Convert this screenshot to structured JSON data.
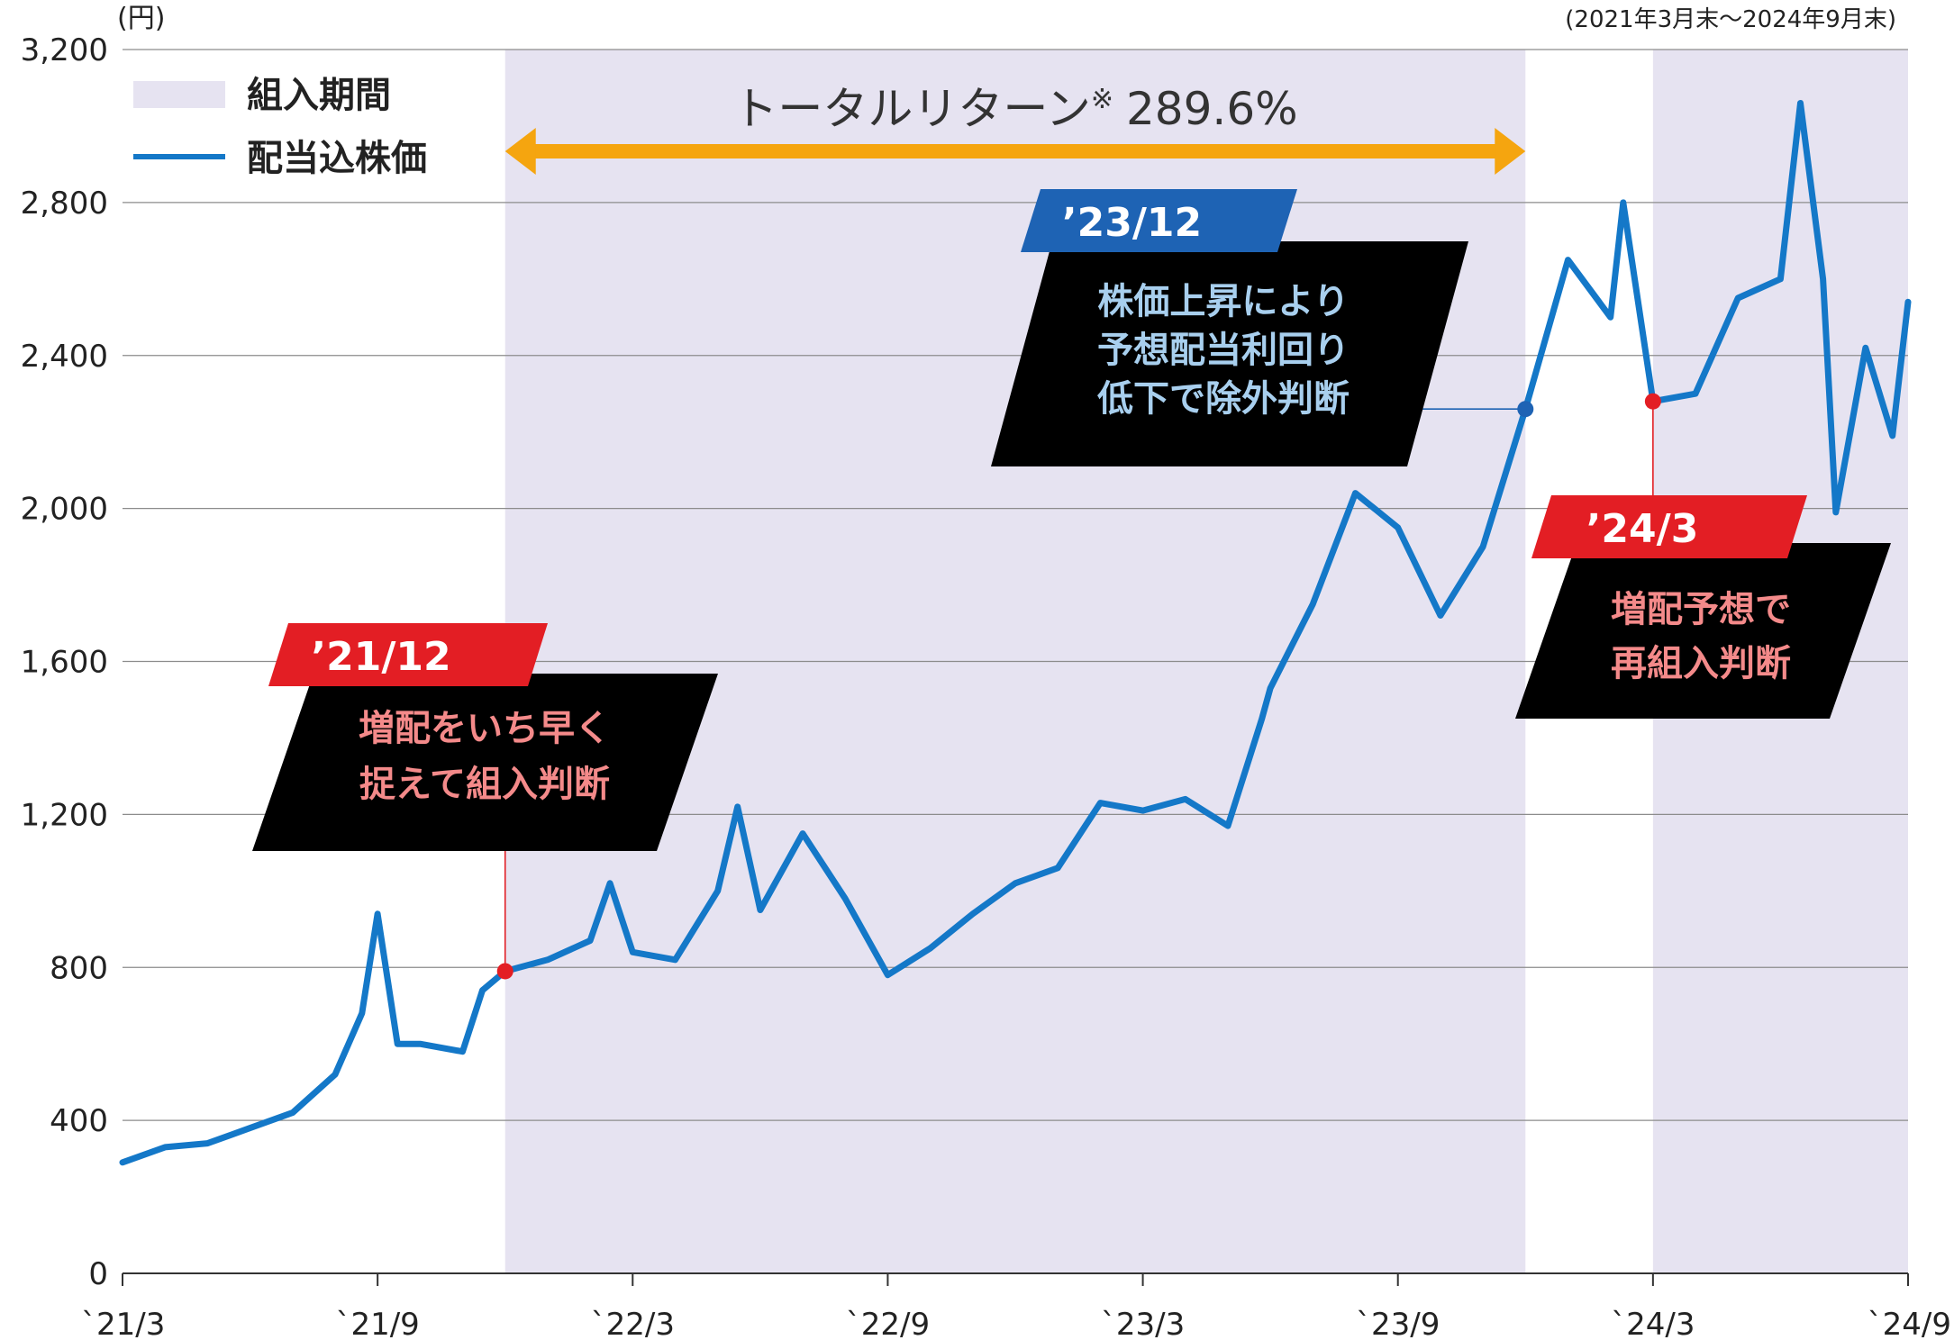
{
  "chart_data": {
    "type": "line",
    "unit_label": "(円)",
    "period_label": "(2021年3月末〜2024年9月末)",
    "ylim": [
      0,
      3200
    ],
    "y_ticks": [
      0,
      400,
      800,
      1200,
      1600,
      2000,
      2400,
      2800,
      3200
    ],
    "y_tick_labels": [
      "0",
      "400",
      "800",
      "1,200",
      "1,600",
      "2,000",
      "2,400",
      "2,800",
      "3,200"
    ],
    "x_ticks": [
      "2021-03",
      "2021-09",
      "2022-03",
      "2022-09",
      "2023-03",
      "2023-09",
      "2024-03",
      "2024-09"
    ],
    "x_tick_labels": [
      "`21/3",
      "`21/9",
      "`22/3",
      "`22/9",
      "`23/3",
      "`23/9",
      "`24/3",
      "`24/9"
    ],
    "xlim": [
      "2021-03",
      "2024-09"
    ],
    "grid": true,
    "legend": {
      "position": "top-left",
      "holding_label": "組入期間",
      "line_label": "配当込株価"
    },
    "holding_periods": [
      {
        "start": "2021-12",
        "end": "2023-12"
      },
      {
        "start": "2024-03",
        "end": "2024-09"
      }
    ],
    "series": [
      {
        "name": "配当込株価",
        "color": "#1478c8",
        "points": [
          [
            "2021-03",
            290
          ],
          [
            "2021-04",
            330
          ],
          [
            "2021-05",
            340
          ],
          [
            "2021-06",
            380
          ],
          [
            "2021-07",
            420
          ],
          [
            "2021-08",
            520
          ],
          [
            "2021-08-20",
            680
          ],
          [
            "2021-09",
            940
          ],
          [
            "2021-09-15",
            600
          ],
          [
            "2021-10",
            600
          ],
          [
            "2021-11",
            580
          ],
          [
            "2021-11-15",
            740
          ],
          [
            "2021-12",
            790
          ],
          [
            "2022-01",
            820
          ],
          [
            "2022-02",
            870
          ],
          [
            "2022-02-15",
            1020
          ],
          [
            "2022-03",
            840
          ],
          [
            "2022-04",
            820
          ],
          [
            "2022-05",
            1000
          ],
          [
            "2022-05-15",
            1220
          ],
          [
            "2022-06",
            950
          ],
          [
            "2022-07",
            1150
          ],
          [
            "2022-08",
            980
          ],
          [
            "2022-09",
            780
          ],
          [
            "2022-10",
            850
          ],
          [
            "2022-11",
            940
          ],
          [
            "2022-12",
            1020
          ],
          [
            "2023-01",
            1060
          ],
          [
            "2023-02",
            1230
          ],
          [
            "2023-03",
            1210
          ],
          [
            "2023-04",
            1240
          ],
          [
            "2023-05",
            1170
          ],
          [
            "2023-05-25",
            1450
          ],
          [
            "2023-06",
            1530
          ],
          [
            "2023-07",
            1750
          ],
          [
            "2023-08",
            2040
          ],
          [
            "2023-09",
            1950
          ],
          [
            "2023-10",
            1720
          ],
          [
            "2023-11",
            1900
          ],
          [
            "2023-12",
            2260
          ],
          [
            "2024-01",
            2650
          ],
          [
            "2024-02",
            2500
          ],
          [
            "2024-02-10",
            2800
          ],
          [
            "2024-03",
            2280
          ],
          [
            "2024-04",
            2300
          ],
          [
            "2024-05",
            2550
          ],
          [
            "2024-06",
            2600
          ],
          [
            "2024-06-15",
            3060
          ],
          [
            "2024-07",
            2600
          ],
          [
            "2024-07-10",
            1990
          ],
          [
            "2024-08",
            2420
          ],
          [
            "2024-08-20",
            2190
          ],
          [
            "2024-09",
            2540
          ]
        ]
      }
    ],
    "total_return": {
      "label": "トータルリターン",
      "note_mark": "※",
      "value": "289.6%",
      "start": "2021-12",
      "end": "2023-12"
    },
    "annotations": [
      {
        "id": "a2112",
        "date_label": "’21/12",
        "x": "2021-12",
        "y": 790,
        "color": "#e31e24",
        "text_lines": [
          "増配をいち早く",
          "捉えて組入判断"
        ]
      },
      {
        "id": "a2312",
        "date_label": "’23/12",
        "x": "2023-12",
        "y": 2260,
        "color": "#1e63b4",
        "text_lines": [
          "株価上昇により",
          "予想配当利回り",
          "低下で除外判断"
        ]
      },
      {
        "id": "a2403",
        "date_label": "’24/3",
        "x": "2024-03",
        "y": 2280,
        "color": "#e31e24",
        "text_lines": [
          "増配予想で",
          "再組入判断"
        ]
      }
    ]
  }
}
